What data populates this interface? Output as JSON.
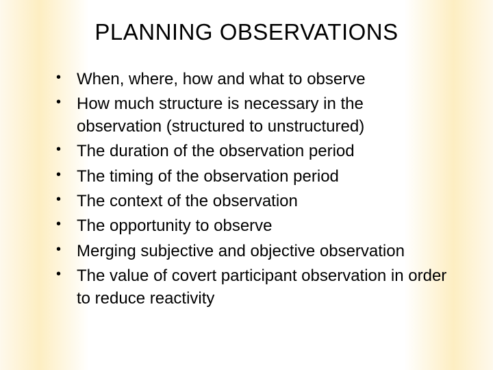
{
  "slide": {
    "title": "PLANNING OBSERVATIONS",
    "title_fontsize": 33,
    "title_color": "#000000",
    "body_fontsize": 24,
    "body_color": "#000000",
    "background_gradient": {
      "left": "#fef9ec",
      "left_mid": "#fdeec2",
      "center": "#ffffff",
      "right_mid": "#fdeec2",
      "right": "#fef9ec"
    },
    "bullets": [
      "When, where, how and what to observe",
      "How much structure is necessary in the observation (structured to unstructured)",
      "The duration of the observation period",
      "The timing of the observation period",
      "The context of the observation",
      "The opportunity to observe",
      "Merging subjective and objective observation",
      "The value of covert participant observation in order to reduce reactivity"
    ]
  }
}
